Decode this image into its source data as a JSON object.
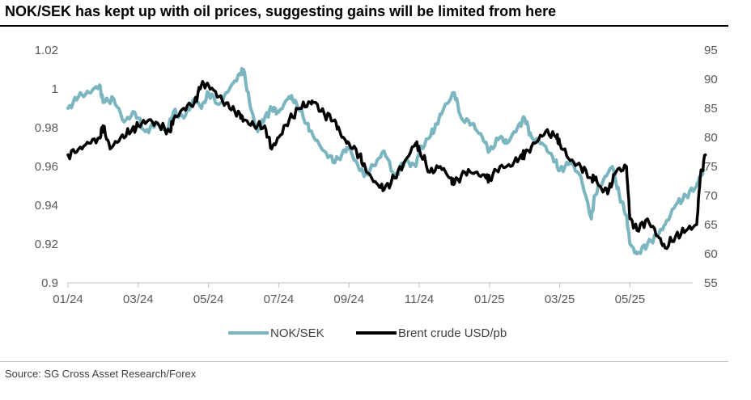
{
  "header": {
    "title": "NOK/SEK has kept up with oil prices, suggesting gains will be limited from here"
  },
  "footer": {
    "source": "Source: SG Cross Asset Research/Forex"
  },
  "colors": {
    "nok_sek": "#7ab5c0",
    "brent": "#000000",
    "axis": "#bfbfbf",
    "rule": "#000000"
  },
  "chart_data": {
    "type": "line",
    "title": "NOK/SEK has kept up with oil prices, suggesting gains will be limited from here",
    "x_tick_labels": [
      "01/24",
      "03/24",
      "05/24",
      "07/24",
      "09/24",
      "11/24",
      "01/25",
      "03/25",
      "05/25"
    ],
    "x_range_months": [
      0,
      18.2
    ],
    "y_left": {
      "label": "NOK/SEK",
      "range": [
        0.9,
        1.02
      ],
      "ticks": [
        "0.9",
        "0.92",
        "0.94",
        "0.96",
        "0.98",
        "1",
        "1.02"
      ]
    },
    "y_right": {
      "label": "Brent crude USD/pb",
      "range": [
        55,
        95
      ],
      "ticks": [
        "55",
        "60",
        "65",
        "70",
        "75",
        "80",
        "85",
        "90",
        "95"
      ]
    },
    "legend": {
      "position": "bottom",
      "items": [
        "NOK/SEK",
        "Brent crude USD/pb"
      ]
    },
    "series": [
      {
        "name": "NOK/SEK",
        "axis": "left",
        "x": [
          0,
          0.3,
          0.6,
          0.9,
          1.0,
          1.3,
          1.6,
          1.9,
          2.2,
          2.5,
          2.8,
          3.0,
          3.3,
          3.6,
          3.8,
          4.0,
          4.3,
          4.6,
          4.9,
          5.0,
          5.2,
          5.4,
          5.6,
          5.8,
          6.0,
          6.3,
          6.5,
          6.8,
          7.0,
          7.3,
          7.6,
          7.9,
          8.0,
          8.3,
          8.5,
          8.8,
          9.0,
          9.3,
          9.6,
          9.9,
          10.0,
          10.3,
          10.5,
          10.7,
          11.0,
          11.2,
          11.5,
          11.8,
          12.0,
          12.3,
          12.5,
          12.8,
          13.0,
          13.2,
          13.5,
          13.8,
          14.0,
          14.3,
          14.6,
          14.9,
          15.0,
          15.3,
          15.5,
          15.7,
          15.9,
          16.0,
          16.2,
          16.5,
          16.8,
          17.0,
          17.3,
          17.6,
          17.9,
          18.0,
          18.1
        ],
        "values": [
          0.99,
          0.996,
          0.998,
          1.002,
          0.993,
          0.995,
          0.983,
          0.988,
          0.978,
          0.982,
          0.978,
          0.988,
          0.985,
          0.995,
          0.99,
          0.998,
          0.992,
          1.0,
          1.008,
          1.01,
          0.99,
          0.978,
          0.985,
          0.99,
          0.988,
          0.996,
          0.993,
          0.982,
          0.975,
          0.968,
          0.962,
          0.968,
          0.97,
          0.958,
          0.956,
          0.963,
          0.968,
          0.955,
          0.963,
          0.96,
          0.968,
          0.975,
          0.982,
          0.99,
          0.998,
          0.985,
          0.982,
          0.975,
          0.968,
          0.975,
          0.972,
          0.98,
          0.985,
          0.975,
          0.972,
          0.965,
          0.958,
          0.962,
          0.955,
          0.933,
          0.945,
          0.955,
          0.96,
          0.945,
          0.935,
          0.92,
          0.915,
          0.92,
          0.925,
          0.93,
          0.94,
          0.945,
          0.95,
          0.955,
          0.958
        ]
      },
      {
        "name": "Brent crude USD/pb",
        "axis": "right",
        "x": [
          0,
          0.3,
          0.6,
          0.9,
          1.0,
          1.2,
          1.5,
          1.8,
          2.0,
          2.3,
          2.6,
          2.9,
          3.0,
          3.3,
          3.6,
          3.8,
          4.0,
          4.3,
          4.6,
          4.9,
          5.0,
          5.3,
          5.6,
          5.8,
          6.0,
          6.3,
          6.6,
          6.9,
          7.0,
          7.3,
          7.6,
          7.8,
          8.0,
          8.3,
          8.5,
          8.8,
          9.0,
          9.3,
          9.6,
          9.9,
          10.0,
          10.3,
          10.6,
          10.9,
          11.0,
          11.3,
          11.6,
          11.9,
          12.0,
          12.3,
          12.6,
          12.9,
          13.0,
          13.3,
          13.6,
          13.9,
          14.0,
          14.3,
          14.6,
          14.9,
          15.0,
          15.2,
          15.4,
          15.6,
          15.9,
          16.0,
          16.2,
          16.5,
          16.8,
          17.0,
          17.3,
          17.6,
          17.9,
          18.0,
          18.15
        ],
        "values": [
          77,
          78,
          79,
          80,
          82,
          78,
          80,
          81,
          82,
          83,
          82,
          81,
          83,
          85,
          86,
          89,
          89,
          87,
          85,
          84,
          83,
          82,
          82,
          78,
          80,
          83,
          85,
          86,
          86,
          84,
          83,
          80,
          79,
          77,
          74,
          72,
          71,
          73,
          76,
          79,
          78,
          74,
          75,
          73,
          72,
          74,
          74,
          73,
          73,
          75,
          75,
          77,
          77,
          79,
          81,
          80,
          79,
          76,
          75,
          73,
          73,
          71,
          71,
          74,
          75,
          66,
          64,
          66,
          63,
          61,
          63,
          64,
          65,
          73,
          77
        ]
      }
    ]
  }
}
